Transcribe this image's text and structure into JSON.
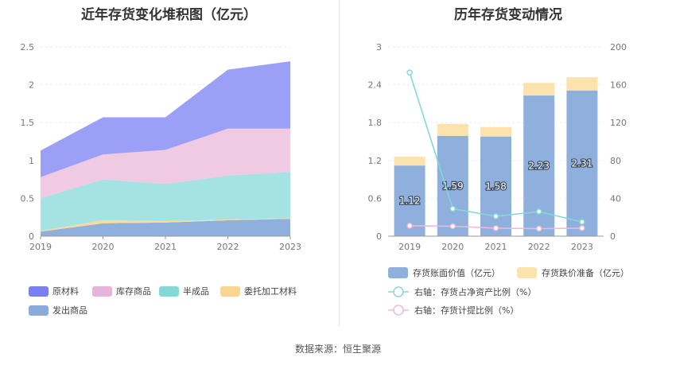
{
  "source_text": "数据来源：恒生聚源",
  "chart_data": [
    {
      "type": "area",
      "stacked": true,
      "title": "近年存货变化堆积图（亿元）",
      "categories": [
        "2019",
        "2020",
        "2021",
        "2022",
        "2023"
      ],
      "ylim": [
        0,
        2.5
      ],
      "yticks": [
        "0",
        "0.5",
        "1",
        "1.5",
        "2",
        "2.5"
      ],
      "grid": true,
      "legend_position": "bottom-left",
      "series": [
        {
          "name": "发出商品",
          "color": "#8fb0dd",
          "values": [
            0.06,
            0.17,
            0.18,
            0.21,
            0.23
          ]
        },
        {
          "name": "委托加工材料",
          "color": "#fdd99a",
          "values": [
            0.01,
            0.04,
            0.02,
            0.01,
            0.01
          ]
        },
        {
          "name": "半成品",
          "color": "#a5e3e3",
          "values": [
            0.43,
            0.54,
            0.49,
            0.58,
            0.61
          ]
        },
        {
          "name": "库存商品",
          "color": "#f0c9e3",
          "values": [
            0.28,
            0.33,
            0.45,
            0.62,
            0.57
          ]
        },
        {
          "name": "原材料",
          "color": "#9b9ff5",
          "values": [
            0.35,
            0.49,
            0.43,
            0.78,
            0.89
          ]
        }
      ],
      "legend_order": [
        "原材料",
        "库存商品",
        "半成品",
        "委托加工材料",
        "发出商品"
      ],
      "legend_colors": {
        "原材料": "#7b80f0",
        "库存商品": "#e6b4d8",
        "半成品": "#86d8d8",
        "委托加工材料": "#fcd590",
        "发出商品": "#8aabdb"
      }
    },
    {
      "type": "bar",
      "stacked": true,
      "title": "历年存货变动情况",
      "categories": [
        "2019",
        "2020",
        "2021",
        "2022",
        "2023"
      ],
      "ylim_left": [
        0,
        3
      ],
      "yticks_left": [
        "0",
        "0.6",
        "1.2",
        "1.8",
        "2.4",
        "3"
      ],
      "ylim_right": [
        0,
        200
      ],
      "yticks_right": [
        "0",
        "40",
        "80",
        "120",
        "160",
        "200"
      ],
      "legend_position": "bottom",
      "bar_series": [
        {
          "name": "存货账面价值（亿元）",
          "color": "#8fb0dd",
          "values": [
            1.12,
            1.59,
            1.58,
            2.23,
            2.31
          ],
          "labels": [
            "1.12",
            "1.59",
            "1.58",
            "2.23",
            "2.31"
          ]
        },
        {
          "name": "存货跌价准备（亿元）",
          "color": "#fce2ad",
          "values": [
            0.14,
            0.19,
            0.15,
            0.2,
            0.21
          ]
        }
      ],
      "line_series": [
        {
          "name": "右轴：存货占净资产比例（%）",
          "color": "#86d8d8",
          "values": [
            173,
            29,
            21,
            26,
            15
          ]
        },
        {
          "name": "右轴：存货计提比例（%）",
          "color": "#f0b8dc",
          "values": [
            11,
            10.5,
            8.5,
            8,
            8.5
          ]
        }
      ]
    }
  ]
}
